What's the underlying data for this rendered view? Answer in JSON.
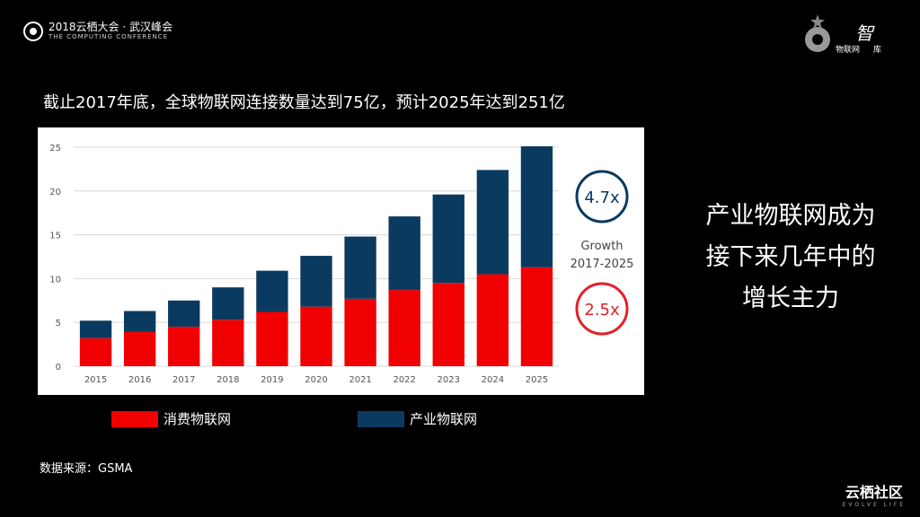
{
  "header": {
    "event_line1": "2018云栖大会 · 武汉峰会",
    "event_line2": "THE COMPUTING CONFERENCE",
    "partner_text_a": "物联网",
    "partner_text_b": "智",
    "partner_text_c": "库"
  },
  "headline": "截止2017年底，全球物联网连接数量达到75亿，预计2025年达到251亿",
  "side_text": [
    "产业物联网成为",
    "接下来几年中的",
    "增长主力"
  ],
  "source": "数据来源：GSMA",
  "brand": {
    "name": "云栖社区",
    "tagline": "EVOLVE LIFE"
  },
  "colors": {
    "consumer": "#f00000",
    "industrial": "#0b3a60",
    "growth_red": "#e5202a",
    "growth_blue": "#0b3a60"
  },
  "chart_data": {
    "type": "bar",
    "stacked": true,
    "title": "",
    "xlabel": "",
    "ylabel": "",
    "ylim": [
      0,
      25
    ],
    "yticks": [
      0,
      5,
      10,
      15,
      20,
      25
    ],
    "grid": true,
    "categories": [
      "2015",
      "2016",
      "2017",
      "2018",
      "2019",
      "2020",
      "2021",
      "2022",
      "2023",
      "2024",
      "2025"
    ],
    "series": [
      {
        "name": "消费物联网",
        "values": [
          3.2,
          3.9,
          4.5,
          5.3,
          6.2,
          6.8,
          7.7,
          8.7,
          9.5,
          10.5,
          11.3
        ]
      },
      {
        "name": "产业物联网",
        "values": [
          2.0,
          2.4,
          3.0,
          3.7,
          4.7,
          5.8,
          7.1,
          8.4,
          10.1,
          11.9,
          13.8
        ]
      }
    ],
    "growth": {
      "label_line1": "Growth",
      "label_line2": "2017-2025",
      "industrial": "4.7x",
      "consumer": "2.5x"
    }
  }
}
